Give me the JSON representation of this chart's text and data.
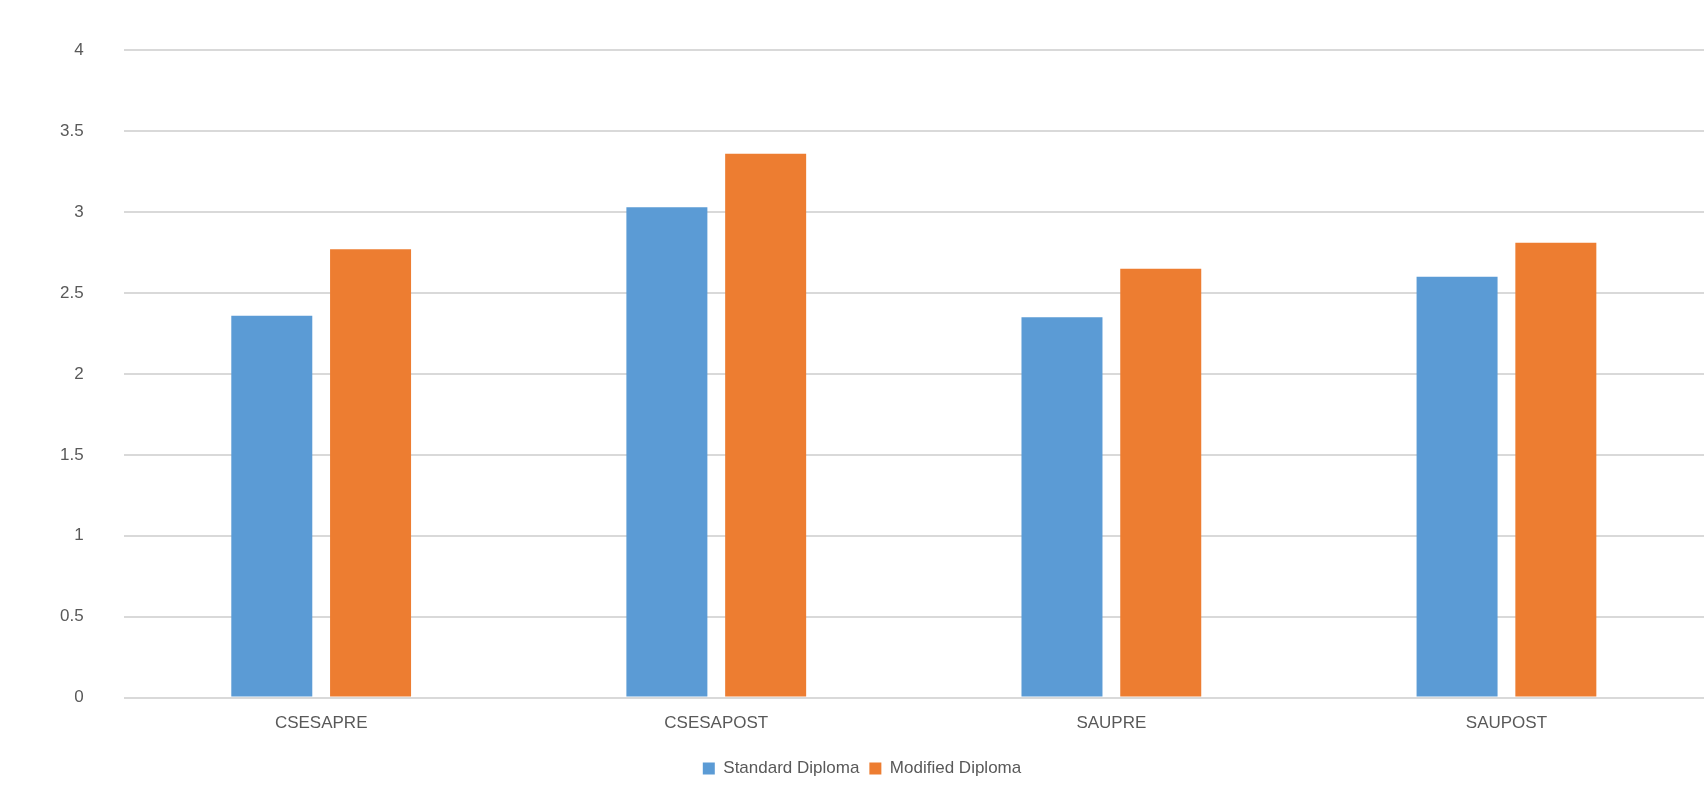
{
  "chart_data": {
    "type": "bar",
    "categories": [
      "CSESAPRE",
      "CSESAPOST",
      "SAUPRE",
      "SAUPOST"
    ],
    "series": [
      {
        "name": "Standard Diploma",
        "color": "#5b9bd5",
        "values": [
          2.36,
          3.03,
          2.35,
          2.6
        ]
      },
      {
        "name": "Modified Diploma",
        "color": "#ed7d31",
        "values": [
          2.77,
          3.36,
          2.65,
          2.81
        ]
      }
    ],
    "ylim": [
      0,
      4
    ],
    "yticks": [
      0,
      0.5,
      1,
      1.5,
      2,
      2.5,
      3,
      3.5,
      4
    ],
    "grid": "y",
    "legend": "bottom"
  }
}
